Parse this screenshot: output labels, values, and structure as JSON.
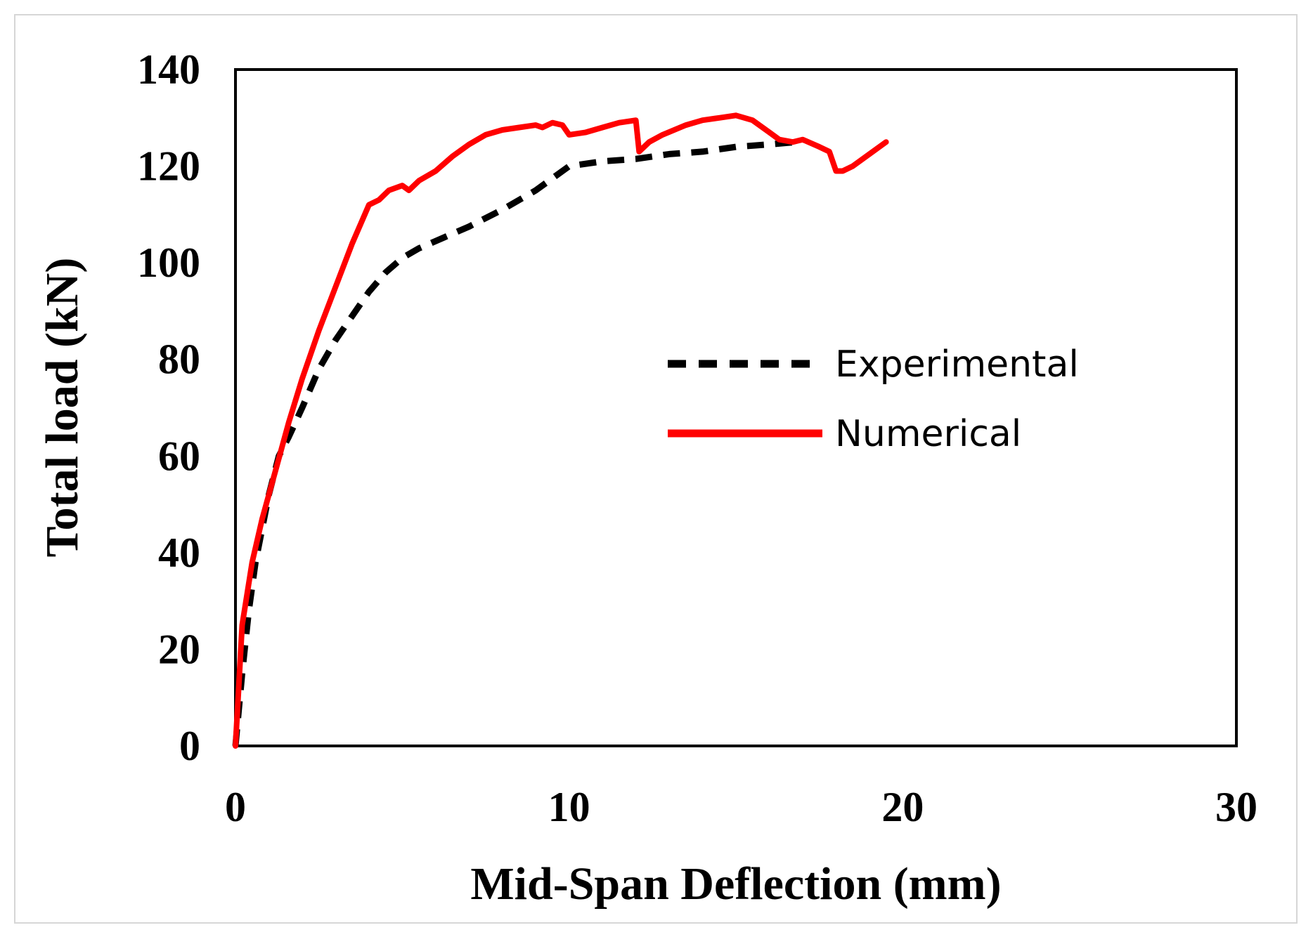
{
  "chart_data": {
    "type": "line",
    "title": "",
    "xlabel": "Mid-Span  Deflection (mm)",
    "ylabel": "Total load (kN)",
    "xlim": [
      0,
      30
    ],
    "ylim": [
      0,
      140
    ],
    "xticks": [
      "0",
      "10",
      "20",
      "30"
    ],
    "yticks": [
      "0",
      "20",
      "40",
      "60",
      "80",
      "100",
      "120",
      "140"
    ],
    "grid": false,
    "legend_position": "center-right",
    "series": [
      {
        "name": "Experimental",
        "color": "#000000",
        "style": "dashed",
        "x": [
          0,
          0.2,
          0.4,
          0.6,
          0.8,
          1.0,
          1.3,
          1.6,
          2.0,
          2.5,
          3.0,
          3.5,
          4.0,
          4.5,
          5.0,
          5.5,
          6.0,
          7.0,
          8.0,
          9.0,
          10.0,
          11.0,
          12.0,
          13.0,
          14.0,
          15.0,
          16.0,
          16.8
        ],
        "y": [
          0,
          15,
          28,
          38,
          45,
          52,
          60,
          64,
          70,
          78,
          84,
          89,
          94,
          98,
          101,
          103,
          104.5,
          107.5,
          111,
          115,
          120,
          121,
          121.5,
          122.5,
          123,
          124,
          124.5,
          125
        ]
      },
      {
        "name": "Numerical",
        "color": "#ff0000",
        "style": "solid",
        "x": [
          0,
          0.2,
          0.5,
          0.8,
          1.2,
          1.6,
          2.0,
          2.5,
          3.0,
          3.5,
          4.0,
          4.3,
          4.6,
          5.0,
          5.2,
          5.5,
          6.0,
          6.5,
          7.0,
          7.5,
          8.0,
          8.5,
          9.0,
          9.2,
          9.5,
          9.8,
          10.0,
          10.5,
          11.0,
          11.5,
          12.0,
          12.1,
          12.4,
          12.8,
          13.5,
          14.0,
          14.5,
          15.0,
          15.5,
          16.0,
          16.3,
          16.7,
          17.0,
          17.5,
          17.8,
          18.0,
          18.2,
          18.5,
          19.0,
          19.5
        ],
        "y": [
          0,
          25,
          38,
          47,
          57,
          67,
          76,
          86,
          95,
          104,
          112,
          113,
          115,
          116,
          115,
          117,
          119,
          122,
          124.5,
          126.5,
          127.5,
          128,
          128.5,
          128,
          129,
          128.5,
          126.5,
          127,
          128,
          129,
          129.5,
          123,
          125,
          126.5,
          128.5,
          129.5,
          130,
          130.5,
          129.5,
          127,
          125.5,
          125,
          125.5,
          124,
          123,
          119,
          119,
          120,
          122.5,
          125
        ]
      }
    ]
  }
}
